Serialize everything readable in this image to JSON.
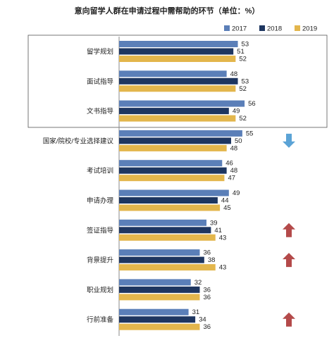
{
  "chart_data": {
    "type": "bar",
    "orientation": "horizontal",
    "title": "意向留学人群在申请过程中需帮助的环节（单位：%）",
    "categories": [
      "留学规划",
      "面试指导",
      "文书指导",
      "国家/院校/专业选择建议",
      "考试培训",
      "申请办理",
      "签证指导",
      "背景提升",
      "职业规划",
      "行前准备"
    ],
    "series": [
      {
        "name": "2017",
        "color": "#5b7fb8",
        "values": [
          53,
          48,
          56,
          55,
          46,
          49,
          39,
          36,
          32,
          31
        ]
      },
      {
        "name": "2018",
        "color": "#1e3660",
        "values": [
          51,
          53,
          49,
          50,
          48,
          44,
          41,
          38,
          36,
          34
        ]
      },
      {
        "name": "2019",
        "color": "#e3b64c",
        "values": [
          52,
          52,
          52,
          48,
          47,
          45,
          43,
          43,
          36,
          36
        ]
      }
    ],
    "legend_position": "top-right",
    "highlight_box_categories": [
      "留学规划",
      "面试指导",
      "文书指导"
    ],
    "trend_markers": [
      {
        "category": "国家/院校/专业选择建议",
        "direction": "down",
        "color": "#5ba3d6"
      },
      {
        "category": "签证指导",
        "direction": "up",
        "color": "#b44a4a"
      },
      {
        "category": "背景提升",
        "direction": "up",
        "color": "#b44a4a"
      },
      {
        "category": "行前准备",
        "direction": "up",
        "color": "#b44a4a"
      }
    ],
    "grid": false
  }
}
